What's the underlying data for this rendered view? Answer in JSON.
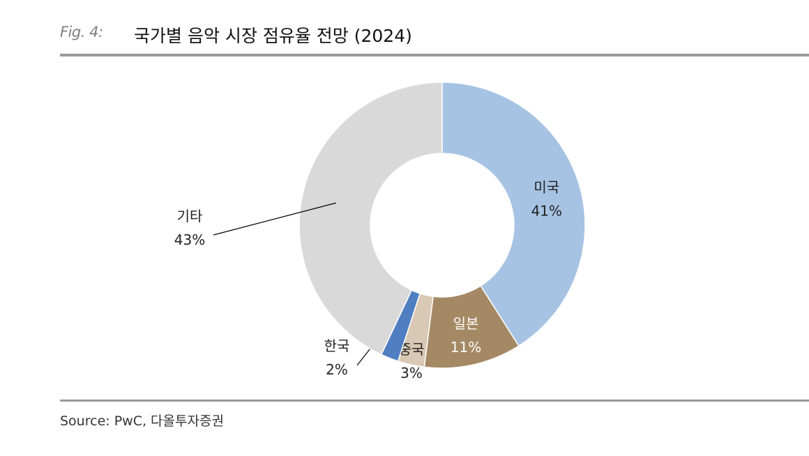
{
  "figure": {
    "label": "Fig. 4:",
    "title": "국가별 음악 시장 점유율 전망 (2024)",
    "source": "Source: PwC, 다올투자증권"
  },
  "chart_data": {
    "type": "pie",
    "variant": "donut",
    "title": "국가별 음악 시장 점유율 전망 (2024)",
    "unit": "%",
    "start": "12 o'clock, clockwise",
    "slices": [
      {
        "name": "미국",
        "value": 41,
        "label": "41%",
        "color": "#a6c3e3",
        "label_color": "#222222"
      },
      {
        "name": "일본",
        "value": 11,
        "label": "11%",
        "color": "#a48964",
        "label_color": "#ffffff"
      },
      {
        "name": "중국",
        "value": 3,
        "label": "3%",
        "color": "#d8c8b4",
        "label_color": "#222222"
      },
      {
        "name": "한국",
        "value": 2,
        "label": "2%",
        "color": "#4f7ec1",
        "label_color": "#222222"
      },
      {
        "name": "기타",
        "value": 43,
        "label": "43%",
        "color": "#d9d9d9",
        "label_color": "#222222"
      }
    ]
  }
}
